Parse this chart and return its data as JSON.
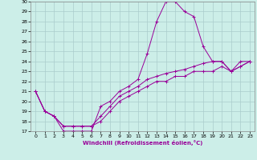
{
  "xlabel": "Windchill (Refroidissement éolien,°C)",
  "background_color": "#cceee8",
  "grid_color": "#aacccc",
  "line_color": "#990099",
  "xlim": [
    -0.5,
    23.5
  ],
  "ylim": [
    17,
    30
  ],
  "xticks": [
    0,
    1,
    2,
    3,
    4,
    5,
    6,
    7,
    8,
    9,
    10,
    11,
    12,
    13,
    14,
    15,
    16,
    17,
    18,
    19,
    20,
    21,
    22,
    23
  ],
  "yticks": [
    17,
    18,
    19,
    20,
    21,
    22,
    23,
    24,
    25,
    26,
    27,
    28,
    29,
    30
  ],
  "series": [
    [
      21.0,
      19.0,
      18.5,
      17.0,
      17.0,
      17.0,
      17.0,
      19.5,
      20.0,
      21.0,
      21.5,
      22.2,
      24.8,
      28.0,
      30.0,
      30.0,
      29.0,
      28.5,
      25.5,
      24.0,
      24.0,
      23.0,
      24.0,
      24.0
    ],
    [
      21.0,
      19.0,
      18.5,
      17.5,
      17.5,
      17.5,
      17.5,
      18.5,
      19.5,
      20.5,
      21.0,
      21.5,
      22.2,
      22.5,
      22.8,
      23.0,
      23.2,
      23.5,
      23.8,
      24.0,
      24.0,
      23.0,
      23.5,
      24.0
    ],
    [
      21.0,
      19.0,
      18.5,
      17.5,
      17.5,
      17.5,
      17.5,
      18.0,
      19.0,
      20.0,
      20.5,
      21.0,
      21.5,
      22.0,
      22.0,
      22.5,
      22.5,
      23.0,
      23.0,
      23.0,
      23.5,
      23.0,
      23.5,
      24.0
    ]
  ],
  "marker": "+",
  "marker_indices_0": [
    0,
    1,
    2,
    3,
    4,
    5,
    6,
    7,
    8,
    9,
    10,
    11,
    12,
    13,
    14,
    15,
    16,
    17,
    18,
    19,
    20,
    21,
    22,
    23
  ],
  "marker_indices_1": [
    0,
    1,
    2,
    6,
    10,
    11,
    12,
    14,
    19,
    20,
    21,
    22,
    23
  ],
  "marker_indices_2": [
    0,
    1,
    2,
    6,
    10,
    11,
    12,
    14,
    19,
    20,
    21,
    22,
    23
  ],
  "figsize": [
    3.2,
    2.0
  ],
  "dpi": 100
}
